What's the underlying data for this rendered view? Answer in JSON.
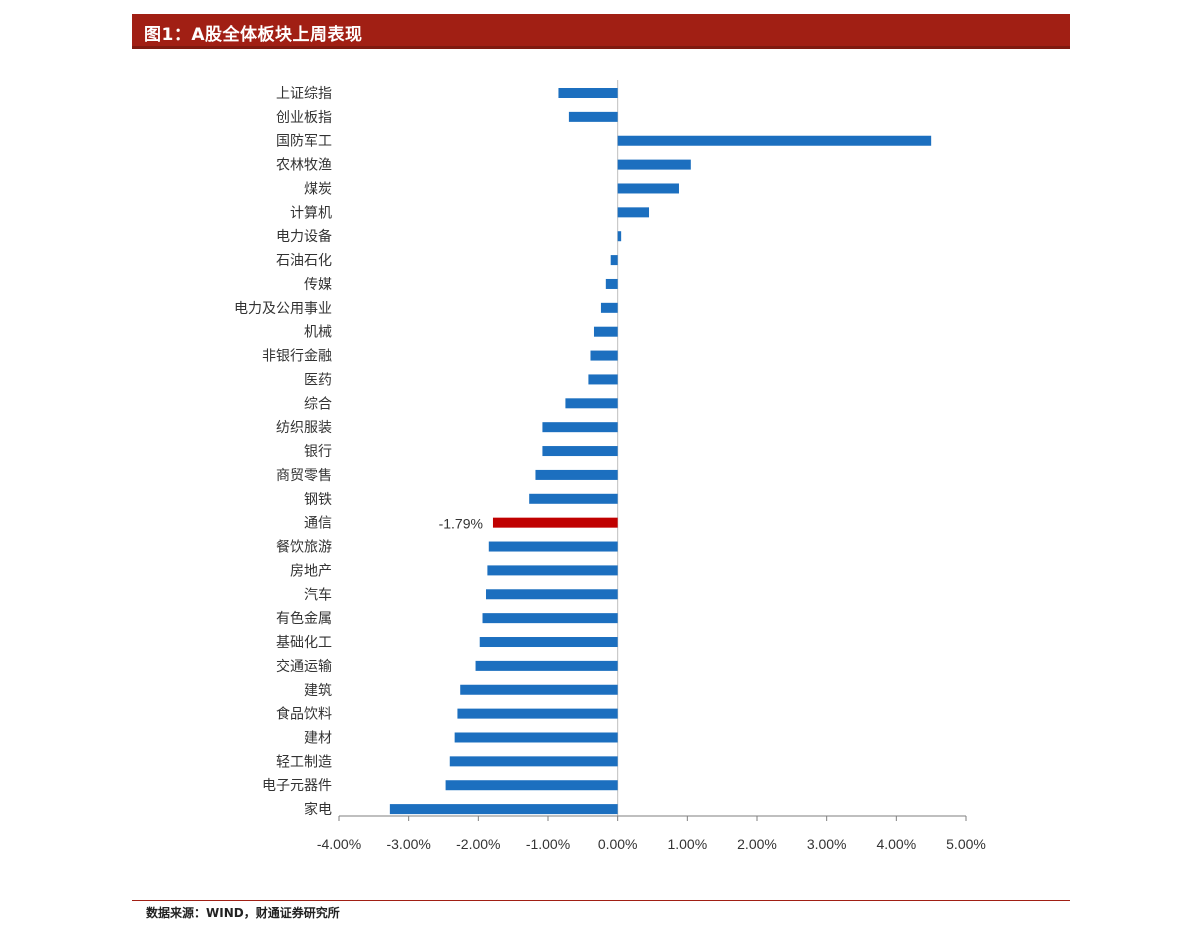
{
  "title": "图1：A股全体板块上周表现",
  "source": "数据来源：WIND，财通证券研究所",
  "colors": {
    "bar": "#1c6fbf",
    "highlight": "#c00000",
    "title_bg": "#a11f14"
  },
  "chart_data": {
    "type": "bar",
    "orientation": "horizontal",
    "categories": [
      "上证综指",
      "创业板指",
      "国防军工",
      "农林牧渔",
      "煤炭",
      "计算机",
      "电力设备",
      "石油石化",
      "传媒",
      "电力及公用事业",
      "机械",
      "非银行金融",
      "医药",
      "综合",
      "纺织服装",
      "银行",
      "商贸零售",
      "钢铁",
      "通信",
      "餐饮旅游",
      "房地产",
      "汽车",
      "有色金属",
      "基础化工",
      "交通运输",
      "建筑",
      "食品饮料",
      "建材",
      "轻工制造",
      "电子元器件",
      "家电"
    ],
    "values": [
      -0.85,
      -0.7,
      4.5,
      1.05,
      0.88,
      0.45,
      0.05,
      -0.1,
      -0.17,
      -0.24,
      -0.34,
      -0.39,
      -0.42,
      -0.75,
      -1.08,
      -1.08,
      -1.18,
      -1.27,
      -1.79,
      -1.85,
      -1.87,
      -1.89,
      -1.94,
      -1.98,
      -2.04,
      -2.26,
      -2.3,
      -2.34,
      -2.41,
      -2.47,
      -3.27
    ],
    "highlight_index": 18,
    "highlight_label": "-1.79%",
    "xlim": [
      -4,
      5
    ],
    "xticks": [
      "-4.00%",
      "-3.00%",
      "-2.00%",
      "-1.00%",
      "0.00%",
      "1.00%",
      "2.00%",
      "3.00%",
      "4.00%",
      "5.00%"
    ],
    "grid": false,
    "legend": "none"
  }
}
